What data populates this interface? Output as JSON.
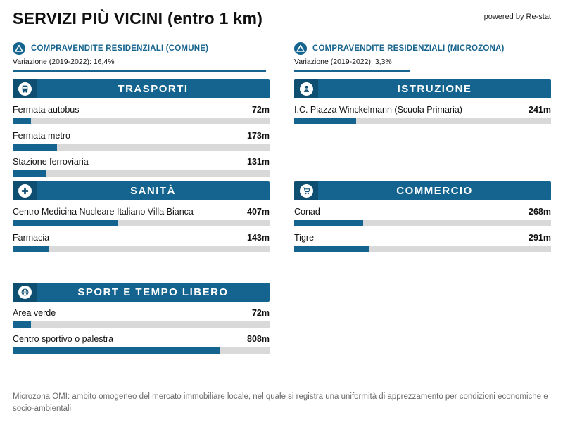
{
  "header": {
    "title": "SERVIZI PIÙ VICINI (entro 1 km)",
    "powered_by": "powered by Re-stat"
  },
  "stats": [
    {
      "icon": "delta-icon",
      "title": "COMPRAVENDITE RESIDENZIALI (COMUNE)",
      "subtitle": "Variazione (2019-2022): 16,4%"
    },
    {
      "icon": "delta-icon",
      "title": "COMPRAVENDITE RESIDENZIALI (MICROZONA)",
      "subtitle": "Variazione (2019-2022): 3,3%"
    }
  ],
  "bar_max_m": 1000,
  "chart_data": [
    {
      "type": "bar",
      "title": "TRASPORTI",
      "icon": "bus-icon",
      "unit": "m",
      "xlim": [
        0,
        1000
      ],
      "categories": [
        "Fermata autobus",
        "Fermata metro",
        "Stazione ferroviaria"
      ],
      "values": [
        72,
        173,
        131
      ],
      "value_labels": [
        "72m",
        "173m",
        "131m"
      ]
    },
    {
      "type": "bar",
      "title": "ISTRUZIONE",
      "icon": "education-icon",
      "unit": "m",
      "xlim": [
        0,
        1000
      ],
      "categories": [
        "I.C. Piazza Winckelmann (Scuola Primaria)"
      ],
      "values": [
        241
      ],
      "value_labels": [
        "241m"
      ]
    },
    {
      "type": "bar",
      "title": "SANITÀ",
      "icon": "health-icon",
      "unit": "m",
      "xlim": [
        0,
        1000
      ],
      "categories": [
        "Centro Medicina Nucleare Italiano Villa Bianca",
        "Farmacia"
      ],
      "values": [
        407,
        143
      ],
      "value_labels": [
        "407m",
        "143m"
      ]
    },
    {
      "type": "bar",
      "title": "COMMERCIO",
      "icon": "cart-icon",
      "unit": "m",
      "xlim": [
        0,
        1000
      ],
      "categories": [
        "Conad",
        "Tigre"
      ],
      "values": [
        268,
        291
      ],
      "value_labels": [
        "268m",
        "291m"
      ]
    },
    {
      "type": "bar",
      "title": "SPORT E TEMPO LIBERO",
      "icon": "sports-icon",
      "unit": "m",
      "xlim": [
        0,
        1000
      ],
      "categories": [
        "Area verde",
        "Centro sportivo o palestra"
      ],
      "values": [
        72,
        808
      ],
      "value_labels": [
        "72m",
        "808m"
      ]
    }
  ],
  "footer": {
    "note": "Microzona OMI: ambito omogeneo del mercato immobiliare locale, nel quale si registra una uniformità di apprezzamento per condizioni economiche e socio-ambientali"
  },
  "colors": {
    "accent": "#14648f",
    "accent_dark": "#0e4e71",
    "track": "#d9d9d9"
  }
}
